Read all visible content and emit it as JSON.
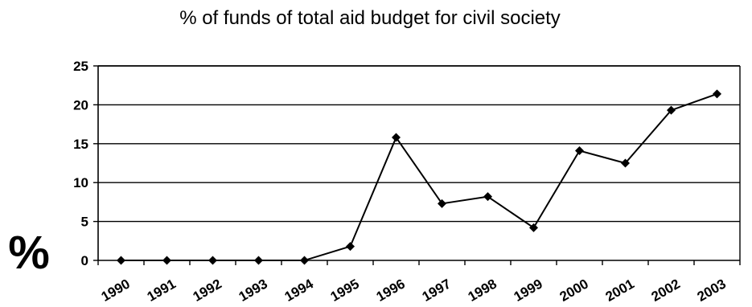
{
  "chart_data": {
    "type": "line",
    "title": "% of funds of total aid budget for civil society",
    "ylabel": "%",
    "xlabel": "",
    "categories": [
      "1990",
      "1991",
      "1992",
      "1993",
      "1994",
      "1995",
      "1996",
      "1997",
      "1998",
      "1999",
      "2000",
      "2001",
      "2002",
      "2003"
    ],
    "values": [
      0,
      0,
      0,
      0,
      0,
      1.8,
      15.8,
      7.3,
      8.2,
      4.2,
      14.1,
      12.5,
      19.3,
      21.4
    ],
    "ylim": [
      0,
      25
    ],
    "yticks": [
      "0",
      "5",
      "10",
      "15",
      "20",
      "25"
    ],
    "grid": true,
    "legend": "none",
    "colors": {
      "line": "#000000",
      "marker": "#000000",
      "grid": "#000000"
    }
  }
}
